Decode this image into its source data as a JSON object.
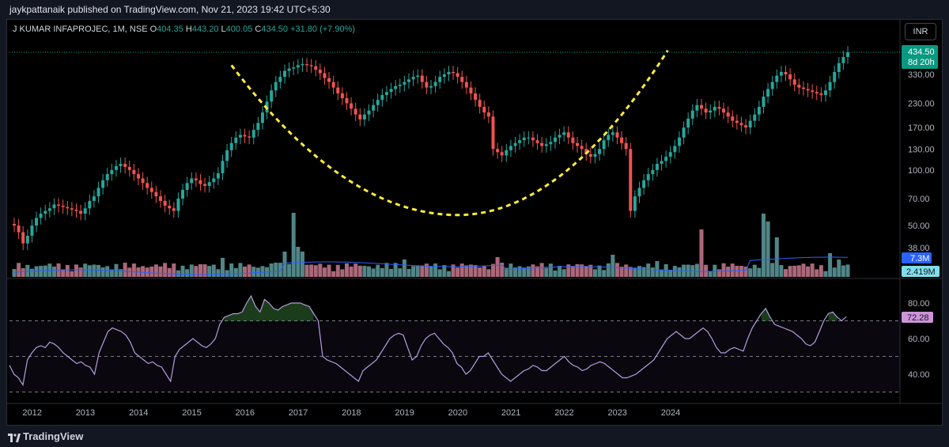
{
  "header": {
    "publisher": "jaykpattanaik published on TradingView.com, Nov 21, 2023 19:42 UTC+5:30"
  },
  "legend": {
    "title": "J KUMAR INFAPROJEC, 1M, NSE",
    "o_label": "O",
    "o": "404.35",
    "h_label": "H",
    "h": "443.20",
    "l_label": "L",
    "l": "400.05",
    "c_label": "C",
    "c": "434.50",
    "change": "+31.80 (+7.90%)"
  },
  "currency_button": "INR",
  "price_badge": {
    "price": "434.50",
    "countdown": "8d 20h"
  },
  "volume_badges": {
    "volume_ma": "7.3M",
    "volume": "2.419M"
  },
  "rsi_badge": "72.28",
  "footer": {
    "brand": "TradingView"
  },
  "colors": {
    "up": "#26a69a",
    "down": "#ef5350",
    "vol_up": "#5f9ea0",
    "vol_down": "#c97a8f",
    "rsi": "#b39ddb",
    "pattern": "#ffeb3b",
    "badge": "#089981",
    "vma": "#2962ff"
  },
  "chart_data": [
    {
      "type": "candlestick",
      "title": "J KUMAR INFAPROJEC, 1M, NSE",
      "y_scale": "log",
      "y_ticks": [
        "330.00",
        "230.00",
        "170.00",
        "130.00",
        "100.00",
        "70.00",
        "50.00",
        "38.00"
      ],
      "y_tick_values": [
        330,
        230,
        170,
        130,
        100,
        70,
        50,
        38
      ],
      "x_ticks": [
        "2012",
        "2013",
        "2014",
        "2015",
        "2016",
        "2017",
        "2018",
        "2019",
        "2020",
        "2021",
        "2022",
        "2023",
        "2024"
      ],
      "x_range": [
        "2011-09",
        "2024-01"
      ],
      "last_price": 434.5,
      "closes_monthly_approx": [
        50,
        46,
        40,
        44,
        50,
        55,
        58,
        60,
        62,
        65,
        64,
        63,
        62,
        61,
        60,
        58,
        62,
        68,
        72,
        80,
        88,
        95,
        100,
        105,
        108,
        104,
        100,
        95,
        90,
        85,
        80,
        76,
        72,
        68,
        64,
        62,
        60,
        70,
        78,
        85,
        90,
        88,
        84,
        82,
        86,
        90,
        96,
        112,
        128,
        140,
        150,
        155,
        152,
        150,
        165,
        180,
        205,
        235,
        270,
        300,
        320,
        345,
        355,
        360,
        370,
        375,
        370,
        365,
        350,
        335,
        315,
        300,
        280,
        260,
        245,
        230,
        215,
        200,
        188,
        200,
        210,
        225,
        240,
        255,
        265,
        275,
        285,
        290,
        300,
        310,
        320,
        325,
        300,
        280,
        285,
        300,
        320,
        330,
        340,
        335,
        320,
        300,
        280,
        260,
        240,
        220,
        205,
        195,
        130,
        125,
        120,
        128,
        135,
        140,
        145,
        150,
        150,
        145,
        140,
        135,
        138,
        142,
        150,
        155,
        160,
        150,
        140,
        135,
        130,
        122,
        118,
        122,
        130,
        145,
        155,
        160,
        150,
        140,
        130,
        60,
        72,
        80,
        88,
        95,
        100,
        108,
        112,
        118,
        125,
        135,
        150,
        170,
        190,
        210,
        225,
        215,
        205,
        210,
        220,
        215,
        205,
        195,
        185,
        180,
        175,
        170,
        185,
        200,
        220,
        250,
        275,
        300,
        325,
        340,
        330,
        310,
        290,
        280,
        275,
        270,
        265,
        260,
        255,
        270,
        300,
        340,
        380,
        410,
        434.5
      ],
      "pattern": "cup (dashed yellow curve from 2015 high through 2020 low to 2023 high)"
    },
    {
      "type": "bar",
      "title": "Volume",
      "moving_average_label": "7.3M",
      "last_volume_label": "2.419M"
    },
    {
      "type": "line",
      "title": "RSI",
      "y_ticks": [
        "80.00",
        "60.00",
        "40.00"
      ],
      "y_tick_values": [
        80,
        60,
        40
      ],
      "levels": [
        70,
        50,
        30
      ],
      "last_value": 72.28,
      "values_monthly_approx": [
        45,
        40,
        38,
        34,
        48,
        52,
        55,
        56,
        55,
        58,
        57,
        55,
        52,
        50,
        48,
        46,
        47,
        45,
        44,
        40,
        52,
        58,
        64,
        66,
        65,
        64,
        62,
        58,
        52,
        50,
        48,
        46,
        47,
        45,
        44,
        40,
        36,
        50,
        54,
        56,
        58,
        60,
        58,
        56,
        55,
        57,
        60,
        68,
        72,
        73,
        74,
        74,
        75,
        80,
        84,
        78,
        75,
        82,
        80,
        77,
        76,
        78,
        79,
        80,
        80,
        80,
        79,
        78,
        74,
        70,
        50,
        48,
        47,
        46,
        44,
        42,
        40,
        38,
        36,
        42,
        44,
        46,
        48,
        52,
        56,
        60,
        62,
        63,
        62,
        55,
        48,
        50,
        56,
        60,
        62,
        63,
        60,
        57,
        55,
        52,
        46,
        44,
        40,
        42,
        46,
        50,
        50,
        52,
        48,
        44,
        40,
        38,
        36,
        38,
        40,
        42,
        43,
        45,
        44,
        42,
        42,
        44,
        46,
        48,
        50,
        47,
        45,
        44,
        42,
        43,
        45,
        46,
        47,
        46,
        44,
        42,
        40,
        38,
        38,
        39,
        40,
        42,
        44,
        46,
        48,
        52,
        56,
        60,
        62,
        64,
        62,
        60,
        60,
        62,
        64,
        66,
        64,
        60,
        55,
        52,
        52,
        54,
        55,
        54,
        53,
        60,
        66,
        70,
        74,
        77,
        72,
        68,
        67,
        66,
        65,
        64,
        62,
        60,
        57,
        56,
        58,
        64,
        70,
        74,
        75,
        72,
        70,
        72.28
      ]
    }
  ]
}
